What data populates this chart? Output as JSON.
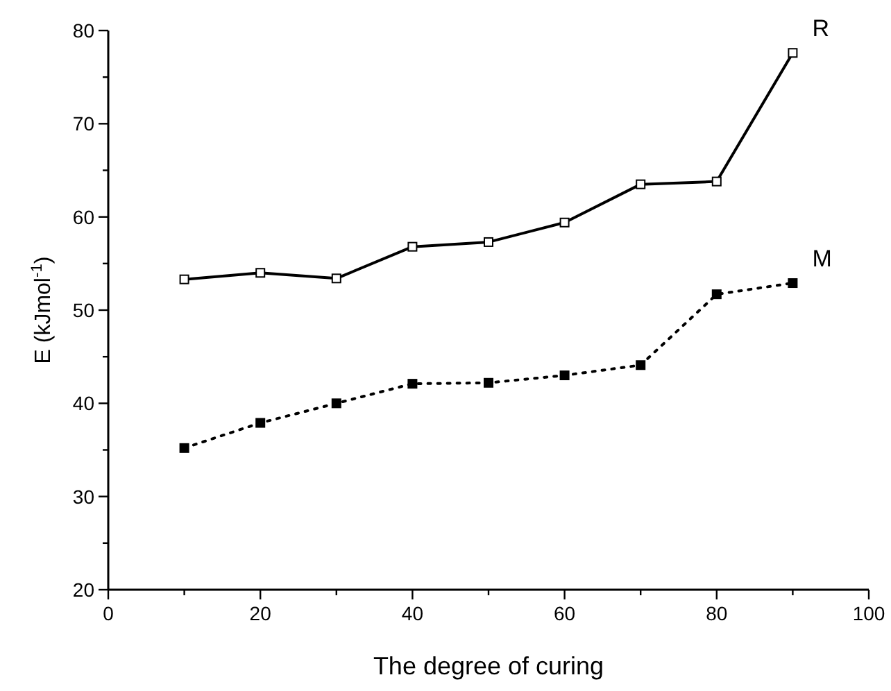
{
  "chart_data": {
    "type": "line",
    "xlabel": "The degree of curing",
    "ylabel": "E (kJmol$^{-1}$)",
    "x": [
      10,
      20,
      30,
      40,
      50,
      60,
      70,
      80,
      90
    ],
    "xlim": [
      0,
      100
    ],
    "xticks": [
      0,
      {
        "value": 10,
        "label": null
      },
      20,
      {
        "value": 30,
        "label": null
      },
      40,
      {
        "value": 50,
        "label": null
      },
      60,
      {
        "value": 70,
        "label": null
      },
      80,
      {
        "value": 90,
        "label": null
      },
      100
    ],
    "ylim": [
      20,
      80
    ],
    "yticks": [
      20,
      {
        "value": 25,
        "label": null
      },
      30,
      {
        "value": 35,
        "label": null
      },
      40,
      {
        "value": 45,
        "label": null
      },
      50,
      {
        "value": 55,
        "label": null
      },
      60,
      {
        "value": 65,
        "label": null
      },
      70,
      {
        "value": 75,
        "label": null
      },
      80
    ],
    "grid": false,
    "legend": false,
    "marker": "square",
    "series": [
      {
        "name": "R",
        "color": "#000000",
        "line_style": "solid",
        "values": [
          53.3,
          54.0,
          53.4,
          56.8,
          57.3,
          59.4,
          63.5,
          63.8,
          77.6
        ]
      },
      {
        "name": "M",
        "color": "#000000",
        "line_style": "dotted",
        "values": [
          35.2,
          37.9,
          40.0,
          42.1,
          42.2,
          43.0,
          44.1,
          51.7,
          52.9
        ]
      }
    ]
  }
}
